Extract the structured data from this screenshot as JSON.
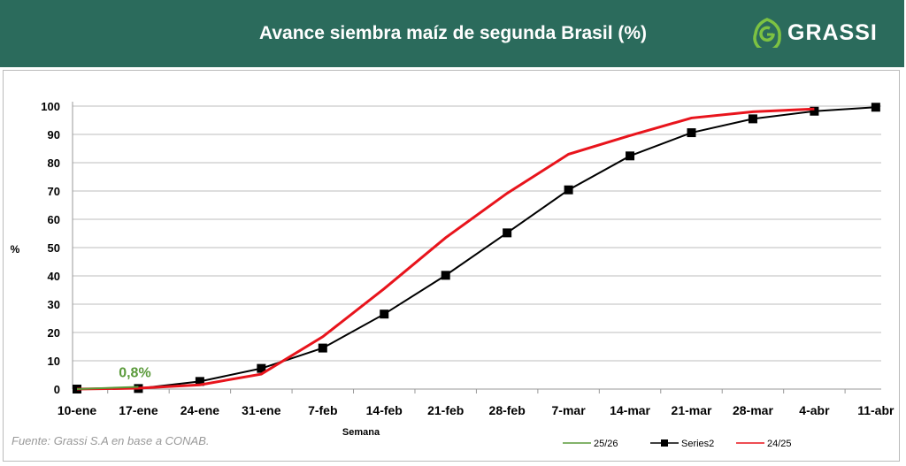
{
  "header": {
    "title": "Avance siembra maíz de segunda Brasil (%)",
    "logo_text": "GRASSI"
  },
  "source": "Fuente: Grassi S.A en base a CONAB.",
  "colors": {
    "header_bg": "#2b6b5c",
    "logo_green": "#7dc242"
  },
  "chart_data": {
    "type": "line",
    "title": "Avance siembra maíz de segunda Brasil (%)",
    "xlabel": "Semana",
    "ylabel": "%",
    "ylim": [
      0,
      100
    ],
    "yticks": [
      0,
      10,
      20,
      30,
      40,
      50,
      60,
      70,
      80,
      90,
      100
    ],
    "grid": true,
    "legend": "bottom-right",
    "categories": [
      "10-ene",
      "17-ene",
      "24-ene",
      "31-ene",
      "7-feb",
      "14-feb",
      "21-feb",
      "28-feb",
      "7-mar",
      "14-mar",
      "21-mar",
      "28-mar",
      "4-abr",
      "11-abr"
    ],
    "series": [
      {
        "name": "25/26",
        "color": "#5a9a3a",
        "values": [
          0,
          0.8,
          null,
          null,
          null,
          null,
          null,
          null,
          null,
          null,
          null,
          null,
          null,
          null
        ]
      },
      {
        "name": "Series2",
        "color": "#000000",
        "marker": "square",
        "values": [
          0,
          0.2,
          2.7,
          7.3,
          14.5,
          26.5,
          40.2,
          55.2,
          70.4,
          82.4,
          90.6,
          95.5,
          98.2,
          99.6
        ]
      },
      {
        "name": "24/25",
        "color": "#e8141c",
        "values": [
          0,
          0.3,
          1.5,
          5.3,
          18.5,
          35.5,
          53.5,
          69.2,
          83,
          89.6,
          95.8,
          98,
          99,
          null
        ]
      }
    ],
    "annotations": [
      {
        "text": "0,8%",
        "x": "17-ene",
        "y": 0.8,
        "color": "#5a9a3a"
      }
    ]
  }
}
